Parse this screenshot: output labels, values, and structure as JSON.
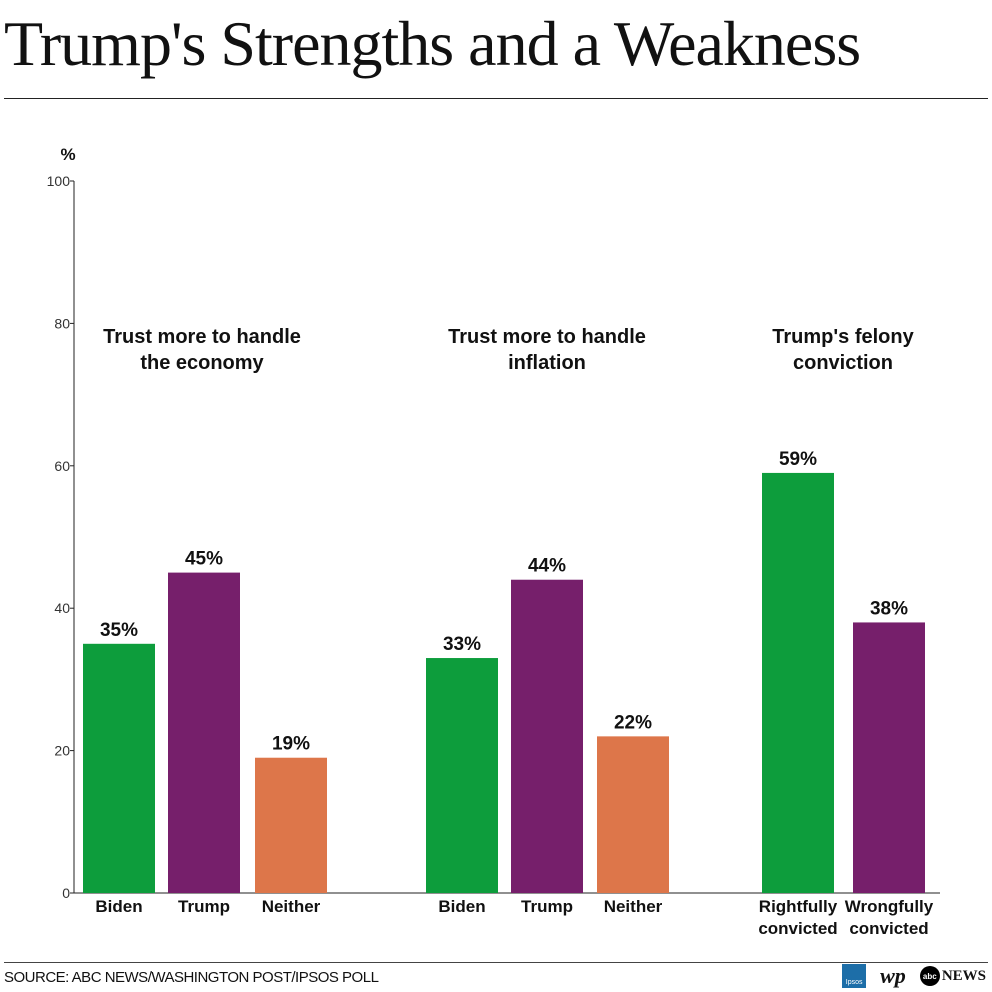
{
  "title": "Trump's Strengths and a Weakness",
  "source": "SOURCE: ABC NEWS/WASHINGTON POST/IPSOS POLL",
  "logos": {
    "ipsos": "Ipsos",
    "wp": "wp",
    "abc": "abc",
    "news": "NEWS"
  },
  "chart_data": {
    "type": "bar",
    "ylabel": "%",
    "ylim": [
      0,
      100
    ],
    "yticks": [
      0,
      20,
      40,
      60,
      80,
      100
    ],
    "grid": false,
    "groups": [
      {
        "title": [
          "Trust more to handle",
          "the economy"
        ],
        "bars": [
          {
            "label": [
              "Biden"
            ],
            "value": 35,
            "value_label": "35%",
            "color": "#0d9d3c"
          },
          {
            "label": [
              "Trump"
            ],
            "value": 45,
            "value_label": "45%",
            "color": "#761f6b"
          },
          {
            "label": [
              "Neither"
            ],
            "value": 19,
            "value_label": "19%",
            "color": "#dd764a"
          }
        ]
      },
      {
        "title": [
          "Trust more to handle",
          "inflation"
        ],
        "bars": [
          {
            "label": [
              "Biden"
            ],
            "value": 33,
            "value_label": "33%",
            "color": "#0d9d3c"
          },
          {
            "label": [
              "Trump"
            ],
            "value": 44,
            "value_label": "44%",
            "color": "#761f6b"
          },
          {
            "label": [
              "Neither"
            ],
            "value": 22,
            "value_label": "22%",
            "color": "#dd764a"
          }
        ]
      },
      {
        "title": [
          "Trump's felony",
          "conviction"
        ],
        "bars": [
          {
            "label": [
              "Rightfully",
              "convicted"
            ],
            "value": 59,
            "value_label": "59%",
            "color": "#0d9d3c"
          },
          {
            "label": [
              "Wrongfully",
              "convicted"
            ],
            "value": 38,
            "value_label": "38%",
            "color": "#761f6b"
          }
        ]
      }
    ]
  }
}
